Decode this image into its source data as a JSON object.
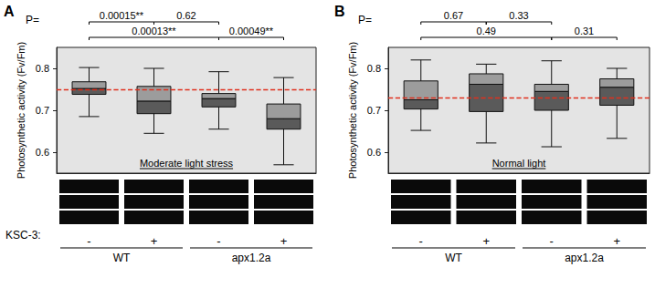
{
  "chart_data": [
    {
      "type": "boxplot",
      "panel": "A",
      "subtitle": "Moderate light stress",
      "y_label": "Photosynthetic activity (Fv/Fm)",
      "categories": [
        "-",
        "+",
        "-",
        "+"
      ],
      "category_label": "KSC-3:",
      "groups": [
        {
          "label": "WT",
          "categories": [
            0,
            1
          ]
        },
        {
          "label": "apx1.2a",
          "categories": [
            2,
            3
          ]
        }
      ],
      "boxes": [
        [
          0.685,
          0.738,
          0.752,
          0.768,
          0.802
        ],
        [
          0.645,
          0.692,
          0.722,
          0.757,
          0.8
        ],
        [
          0.655,
          0.708,
          0.728,
          0.74,
          0.792
        ],
        [
          0.57,
          0.655,
          0.68,
          0.715,
          0.778
        ]
      ],
      "reference_line": 0.752,
      "p_label": "P=",
      "comparisons": [
        {
          "between": [
            0,
            1
          ],
          "p": "0.00015**"
        },
        {
          "between": [
            1,
            2
          ],
          "p": "0.62"
        },
        {
          "between": [
            0,
            2
          ],
          "p": "0.00013**"
        },
        {
          "between": [
            2,
            3
          ],
          "p": "0.00049**"
        }
      ],
      "ylim": [
        0.55,
        0.85
      ],
      "yticks": [
        0.6,
        0.7,
        0.8
      ],
      "grid": false
    },
    {
      "type": "boxplot",
      "panel": "B",
      "subtitle": "Normal light",
      "y_label": "Photosynthetic activity (Fv/Fm)",
      "categories": [
        "-",
        "+",
        "-",
        "+"
      ],
      "groups": [
        {
          "label": "WT",
          "categories": [
            0,
            1
          ]
        },
        {
          "label": "apx1.2a",
          "categories": [
            2,
            3
          ]
        }
      ],
      "boxes": [
        [
          0.652,
          0.703,
          0.725,
          0.77,
          0.82
        ],
        [
          0.622,
          0.697,
          0.762,
          0.787,
          0.81
        ],
        [
          0.613,
          0.7,
          0.745,
          0.762,
          0.818
        ],
        [
          0.633,
          0.712,
          0.755,
          0.775,
          0.8
        ]
      ],
      "reference_line": 0.73,
      "p_label": "P=",
      "comparisons": [
        {
          "between": [
            0,
            1
          ],
          "p": "0.67"
        },
        {
          "between": [
            1,
            2
          ],
          "p": "0.33"
        },
        {
          "between": [
            0,
            2
          ],
          "p": "0.49"
        },
        {
          "between": [
            2,
            3
          ],
          "p": "0.31"
        }
      ],
      "ylim": [
        0.55,
        0.85
      ],
      "yticks": [
        0.6,
        0.7,
        0.8
      ],
      "grid": false
    }
  ]
}
